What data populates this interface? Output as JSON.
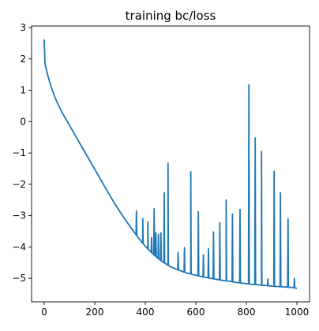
{
  "chart_data": {
    "type": "line",
    "title": "training bc/loss",
    "xlabel": "",
    "ylabel": "",
    "xlim": [
      -50,
      1050
    ],
    "ylim": [
      -5.75,
      3.05
    ],
    "x_ticks": [
      0,
      200,
      400,
      600,
      800,
      1000
    ],
    "y_ticks": [
      -5,
      -4,
      -3,
      -2,
      -1,
      0,
      1,
      2,
      3
    ],
    "grid": false,
    "legend": "none",
    "color": "#1f77b4",
    "series": [
      {
        "x": [
          0,
          3,
          10,
          20,
          30,
          40,
          50,
          60,
          70,
          80,
          100,
          120,
          140,
          160,
          180,
          200,
          220,
          240,
          260,
          280,
          300,
          320,
          340,
          360,
          370,
          380,
          390,
          400,
          410,
          420,
          430,
          440,
          450,
          460,
          470,
          480,
          490,
          500,
          520,
          540,
          560,
          580,
          600,
          620,
          640,
          660,
          680,
          700,
          720,
          740,
          760,
          780,
          800,
          820,
          840,
          860,
          880,
          900,
          920,
          940,
          960,
          980,
          1000
        ],
        "y": [
          2.62,
          1.85,
          1.6,
          1.3,
          1.05,
          0.83,
          0.63,
          0.47,
          0.3,
          0.16,
          -0.12,
          -0.4,
          -0.68,
          -0.96,
          -1.24,
          -1.52,
          -1.8,
          -2.08,
          -2.36,
          -2.63,
          -2.88,
          -3.12,
          -3.35,
          -3.57,
          -3.68,
          -3.78,
          -3.88,
          -3.97,
          -4.06,
          -4.14,
          -4.22,
          -4.29,
          -4.36,
          -4.42,
          -4.48,
          -4.53,
          -4.58,
          -4.63,
          -4.7,
          -4.76,
          -4.82,
          -4.86,
          -4.9,
          -4.94,
          -4.97,
          -5.0,
          -5.03,
          -5.06,
          -5.08,
          -5.1,
          -5.13,
          -5.15,
          -5.17,
          -5.19,
          -5.2,
          -5.22,
          -5.23,
          -5.25,
          -5.26,
          -5.27,
          -5.28,
          -5.29,
          -5.32
        ]
      }
    ],
    "spikes": [
      {
        "x": 365,
        "y": -2.85
      },
      {
        "x": 390,
        "y": -3.1
      },
      {
        "x": 410,
        "y": -3.2
      },
      {
        "x": 425,
        "y": -3.7
      },
      {
        "x": 435,
        "y": -2.78
      },
      {
        "x": 442,
        "y": -3.55
      },
      {
        "x": 452,
        "y": -3.6
      },
      {
        "x": 462,
        "y": -3.55
      },
      {
        "x": 475,
        "y": -2.27
      },
      {
        "x": 490,
        "y": -1.33
      },
      {
        "x": 530,
        "y": -4.18
      },
      {
        "x": 555,
        "y": -4.02
      },
      {
        "x": 580,
        "y": -1.6
      },
      {
        "x": 610,
        "y": -2.87
      },
      {
        "x": 630,
        "y": -4.25
      },
      {
        "x": 650,
        "y": -4.05
      },
      {
        "x": 670,
        "y": -3.52
      },
      {
        "x": 695,
        "y": -3.23
      },
      {
        "x": 720,
        "y": -2.5
      },
      {
        "x": 745,
        "y": -2.95
      },
      {
        "x": 775,
        "y": -2.8
      },
      {
        "x": 810,
        "y": 1.17
      },
      {
        "x": 835,
        "y": -0.52
      },
      {
        "x": 860,
        "y": -0.95
      },
      {
        "x": 885,
        "y": -5.02
      },
      {
        "x": 910,
        "y": -1.58
      },
      {
        "x": 935,
        "y": -2.27
      },
      {
        "x": 965,
        "y": -3.1
      },
      {
        "x": 990,
        "y": -5.0
      }
    ]
  }
}
